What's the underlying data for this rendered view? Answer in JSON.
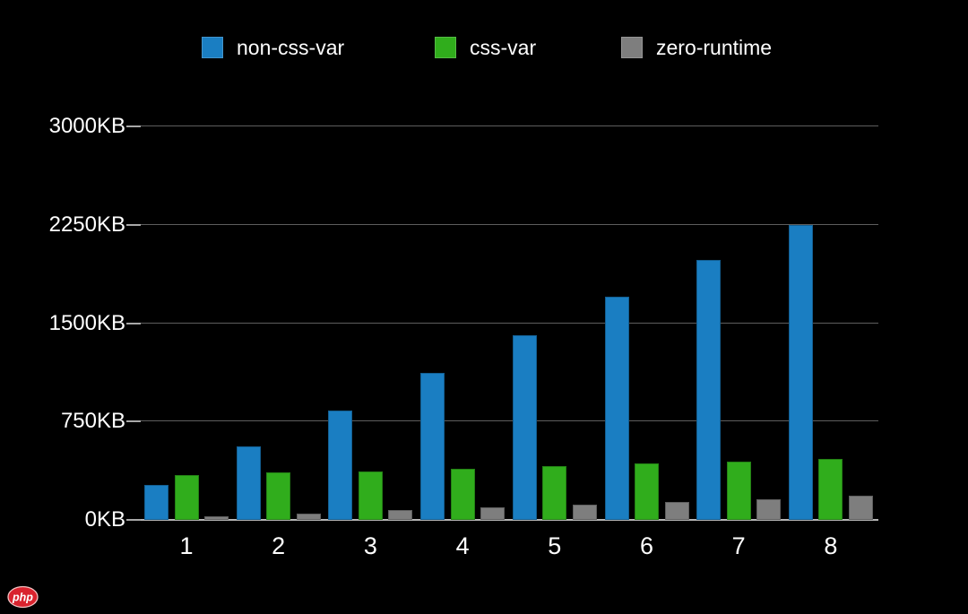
{
  "page": {
    "background": "#000000",
    "text_color": "#ffffff",
    "gridline_color": "#5e5e5e",
    "axis_line_color": "#b5b5b5"
  },
  "legend": {
    "items": [
      {
        "label": "non-css-var",
        "color": "#1a7ec2"
      },
      {
        "label": "css-var",
        "color": "#30ad1c"
      },
      {
        "label": "zero-runtime",
        "color": "#7e7e7e"
      }
    ]
  },
  "watermark": {
    "text": "php",
    "bg_color": "#d9232e"
  },
  "chart_data": {
    "type": "bar",
    "title": "",
    "xlabel": "",
    "ylabel": "",
    "categories": [
      "1",
      "2",
      "3",
      "4",
      "5",
      "6",
      "7",
      "8"
    ],
    "series": [
      {
        "name": "non-css-var",
        "color": "#1a7ec2",
        "values": [
          270,
          560,
          835,
          1120,
          1410,
          1700,
          1980,
          2250
        ]
      },
      {
        "name": "css-var",
        "color": "#30ad1c",
        "values": [
          340,
          360,
          372,
          392,
          410,
          430,
          445,
          466
        ]
      },
      {
        "name": "zero-runtime",
        "color": "#7e7e7e",
        "values": [
          28,
          50,
          73,
          95,
          115,
          137,
          157,
          185
        ]
      }
    ],
    "ylim": [
      0,
      3000
    ],
    "y_ticks": [
      {
        "label": "3000KB",
        "value": 3000
      },
      {
        "label": "2250KB",
        "value": 2250
      },
      {
        "label": "1500KB",
        "value": 1500
      },
      {
        "label": "750KB",
        "value": 750
      },
      {
        "label": "0KB",
        "value": 0
      }
    ],
    "grid": true,
    "legend_position": "top"
  }
}
